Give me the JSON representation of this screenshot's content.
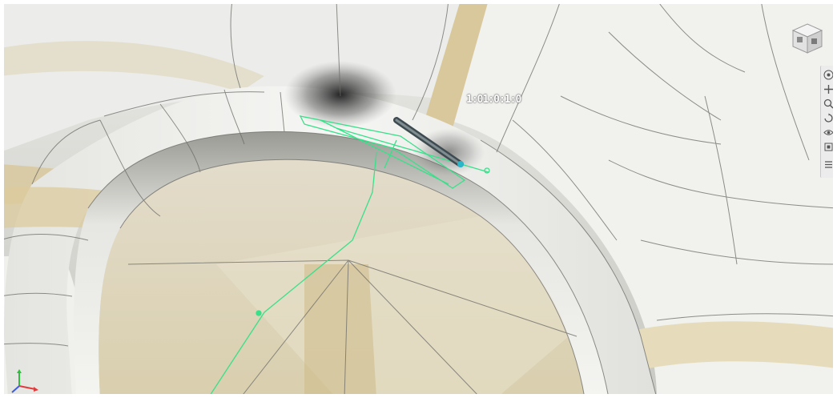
{
  "viewport": {
    "colors": {
      "surface_white": "#f2f2ef",
      "surface_gray": "#d6d6d2",
      "surface_tan": "#d7c69a",
      "mesh_edge": "#6a6a66",
      "sketch_green": "#38e08a",
      "sketch_teal": "#2ab7c9"
    }
  },
  "sketch": {
    "dimension_label": "1:01:0:1:0"
  },
  "viewcube": {
    "icon": "view-cube-icon"
  },
  "navbar": {
    "tools": [
      {
        "name": "full-navigation-wheel-icon",
        "glyph": "◎"
      },
      {
        "name": "pan-icon",
        "glyph": "✥"
      },
      {
        "name": "zoom-icon",
        "glyph": "⊕"
      },
      {
        "name": "orbit-icon",
        "glyph": "⟳"
      },
      {
        "name": "look-icon",
        "glyph": "◉"
      },
      {
        "name": "fit-view-icon",
        "glyph": "▣"
      },
      {
        "name": "settings-icon",
        "glyph": "≡"
      }
    ]
  },
  "triad": {
    "icon": "axis-triad-icon",
    "x_color": "#e23b3b",
    "y_color": "#2fbf3f",
    "z_color": "#3b5be2"
  }
}
